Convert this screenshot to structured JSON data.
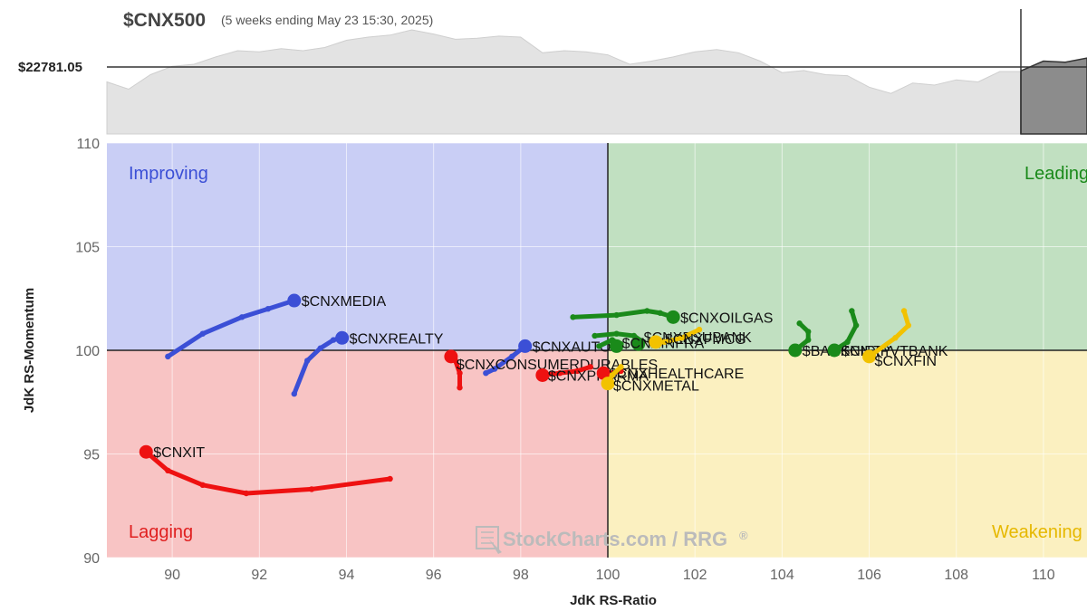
{
  "header": {
    "symbol": "$CNX500",
    "subtitle": "(5 weeks ending May 23 15:30, 2025)",
    "price_label": "$22781.05"
  },
  "watermark": "StockCharts.com / RRG",
  "watermark_mark": "®",
  "chart_data": {
    "type": "scatter",
    "subtype": "relative-rotation-graph",
    "xlabel": "JdK RS-Ratio",
    "ylabel": "JdK RS-Momentum",
    "xlim": [
      88.5,
      111
    ],
    "ylim": [
      90,
      110
    ],
    "x_ticks": [
      90,
      92,
      94,
      96,
      98,
      100,
      102,
      104,
      106,
      108,
      110
    ],
    "y_ticks": [
      90,
      95,
      100,
      105,
      110
    ],
    "quadrants": {
      "improving": {
        "label": "Improving",
        "color": "#c9cef5",
        "text_color": "#3b4fd6"
      },
      "leading": {
        "label": "Leading",
        "color": "#c1e0c1",
        "text_color": "#1a8a1a"
      },
      "lagging": {
        "label": "Lagging",
        "color": "#f8c4c4",
        "text_color": "#e02020"
      },
      "weakening": {
        "label": "Weakening",
        "color": "#fbf0c0",
        "text_color": "#e6b800"
      }
    },
    "colors": {
      "blue": "#3b4fd6",
      "green": "#1a8a1a",
      "red": "#ee1111",
      "yellow": "#f2c200"
    },
    "series": [
      {
        "name": "$CNXMEDIA",
        "color": "blue",
        "points": [
          [
            89.9,
            99.7
          ],
          [
            90.7,
            100.8
          ],
          [
            91.6,
            101.6
          ],
          [
            92.2,
            102.0
          ],
          [
            92.8,
            102.4
          ]
        ]
      },
      {
        "name": "$CNXREALTY",
        "color": "blue",
        "points": [
          [
            92.8,
            97.9
          ],
          [
            93.1,
            99.5
          ],
          [
            93.4,
            100.1
          ],
          [
            93.7,
            100.5
          ],
          [
            93.9,
            100.6
          ]
        ]
      },
      {
        "name": "$CNXAUTO",
        "color": "blue",
        "points": [
          [
            97.2,
            98.9
          ],
          [
            97.4,
            99.1
          ],
          [
            97.8,
            99.7
          ],
          [
            98.1,
            100.2
          ]
        ]
      },
      {
        "name": "$CNXOILGAS",
        "color": "green",
        "points": [
          [
            99.2,
            101.6
          ],
          [
            100.2,
            101.7
          ],
          [
            100.9,
            101.9
          ],
          [
            101.2,
            101.8
          ],
          [
            101.5,
            101.6
          ]
        ]
      },
      {
        "name": "$CNXPSUBANK",
        "color": "green",
        "points": [
          [
            99.7,
            100.7
          ],
          [
            100.2,
            100.8
          ],
          [
            100.6,
            100.7
          ],
          [
            100.8,
            100.4
          ],
          [
            100.7,
            100.3
          ]
        ]
      },
      {
        "name": "$CNXINFRA",
        "color": "green",
        "points": [
          [
            99.8,
            100.2
          ],
          [
            100.1,
            100.5
          ],
          [
            100.3,
            100.3
          ],
          [
            100.2,
            100.2
          ]
        ]
      },
      {
        "name": "$CNXFMCG",
        "color": "yellow",
        "points": [
          [
            102.1,
            101.0
          ],
          [
            101.7,
            100.6
          ],
          [
            101.3,
            100.4
          ],
          [
            101.1,
            100.4
          ]
        ]
      },
      {
        "name": "$BANKNIFTY",
        "color": "green",
        "points": [
          [
            104.4,
            101.3
          ],
          [
            104.6,
            100.9
          ],
          [
            104.6,
            100.5
          ],
          [
            104.3,
            100.0
          ]
        ]
      },
      {
        "name": "$CNXPVTBANK",
        "color": "green",
        "points": [
          [
            105.6,
            101.9
          ],
          [
            105.7,
            101.2
          ],
          [
            105.5,
            100.4
          ],
          [
            105.2,
            100.0
          ]
        ]
      },
      {
        "name": "$CNXFIN",
        "color": "yellow",
        "points": [
          [
            106.8,
            101.9
          ],
          [
            106.9,
            101.2
          ],
          [
            106.6,
            100.6
          ],
          [
            106.0,
            99.7
          ]
        ]
      },
      {
        "name": "$CNXCONSUMERDURABLES",
        "color": "red",
        "points": [
          [
            96.6,
            98.2
          ],
          [
            96.6,
            98.9
          ],
          [
            96.5,
            99.5
          ],
          [
            96.4,
            99.7
          ]
        ]
      },
      {
        "name": "$CNXPHARMA",
        "color": "red",
        "points": [
          [
            99.6,
            99.2
          ],
          [
            99.3,
            99.0
          ],
          [
            98.9,
            98.9
          ],
          [
            98.5,
            98.8
          ]
        ]
      },
      {
        "name": "$CNXHEALTHCARE",
        "color": "red",
        "points": [
          [
            100.3,
            99.0
          ],
          [
            100.1,
            98.9
          ],
          [
            99.9,
            98.9
          ]
        ]
      },
      {
        "name": "$CNXMETAL",
        "color": "yellow",
        "points": [
          [
            100.3,
            99.2
          ],
          [
            100.1,
            98.8
          ],
          [
            100.0,
            98.4
          ]
        ]
      },
      {
        "name": "$CNXIT",
        "color": "red",
        "points": [
          [
            95.0,
            93.8
          ],
          [
            93.2,
            93.3
          ],
          [
            91.7,
            93.1
          ],
          [
            90.7,
            93.5
          ],
          [
            89.9,
            94.2
          ],
          [
            89.4,
            95.1
          ]
        ]
      }
    ],
    "label_offsets": {
      "$CNXMEDIA": [
        8,
        6
      ],
      "$CNXREALTY": [
        8,
        6
      ],
      "$CNXAUTO": [
        8,
        6
      ],
      "$CNXOILGAS": [
        8,
        6
      ],
      "$CNXPSUBANK": [
        6,
        -2
      ],
      "$CNXINFRA": [
        6,
        2
      ],
      "$CNXFMCG": [
        10,
        2
      ],
      "$BANKNIFTY": [
        8,
        6
      ],
      "$CNXPVTBANK": [
        8,
        6
      ],
      "$CNXFIN": [
        6,
        10
      ],
      "$CNXCONSUMERDURABLES": [
        6,
        14
      ],
      "$CNXPHARMA": [
        6,
        6
      ],
      "$CNXHEALTHCARE": [
        6,
        6
      ],
      "$CNXMETAL": [
        6,
        8
      ],
      "$CNXIT": [
        8,
        6
      ]
    },
    "price_series": {
      "values": [
        22400,
        22330,
        22470,
        22550,
        22570,
        22640,
        22700,
        22690,
        22720,
        22700,
        22730,
        22800,
        22830,
        22850,
        22900,
        22860,
        22810,
        22820,
        22840,
        22830,
        22680,
        22700,
        22690,
        22660,
        22570,
        22600,
        22640,
        22690,
        22710,
        22680,
        22600,
        22490,
        22510,
        22470,
        22460,
        22350,
        22290,
        22390,
        22370,
        22420,
        22400,
        22500,
        22510,
        22600,
        22590,
        22630
      ],
      "current": 22781.05,
      "ylim": [
        21900,
        23100
      ]
    }
  }
}
